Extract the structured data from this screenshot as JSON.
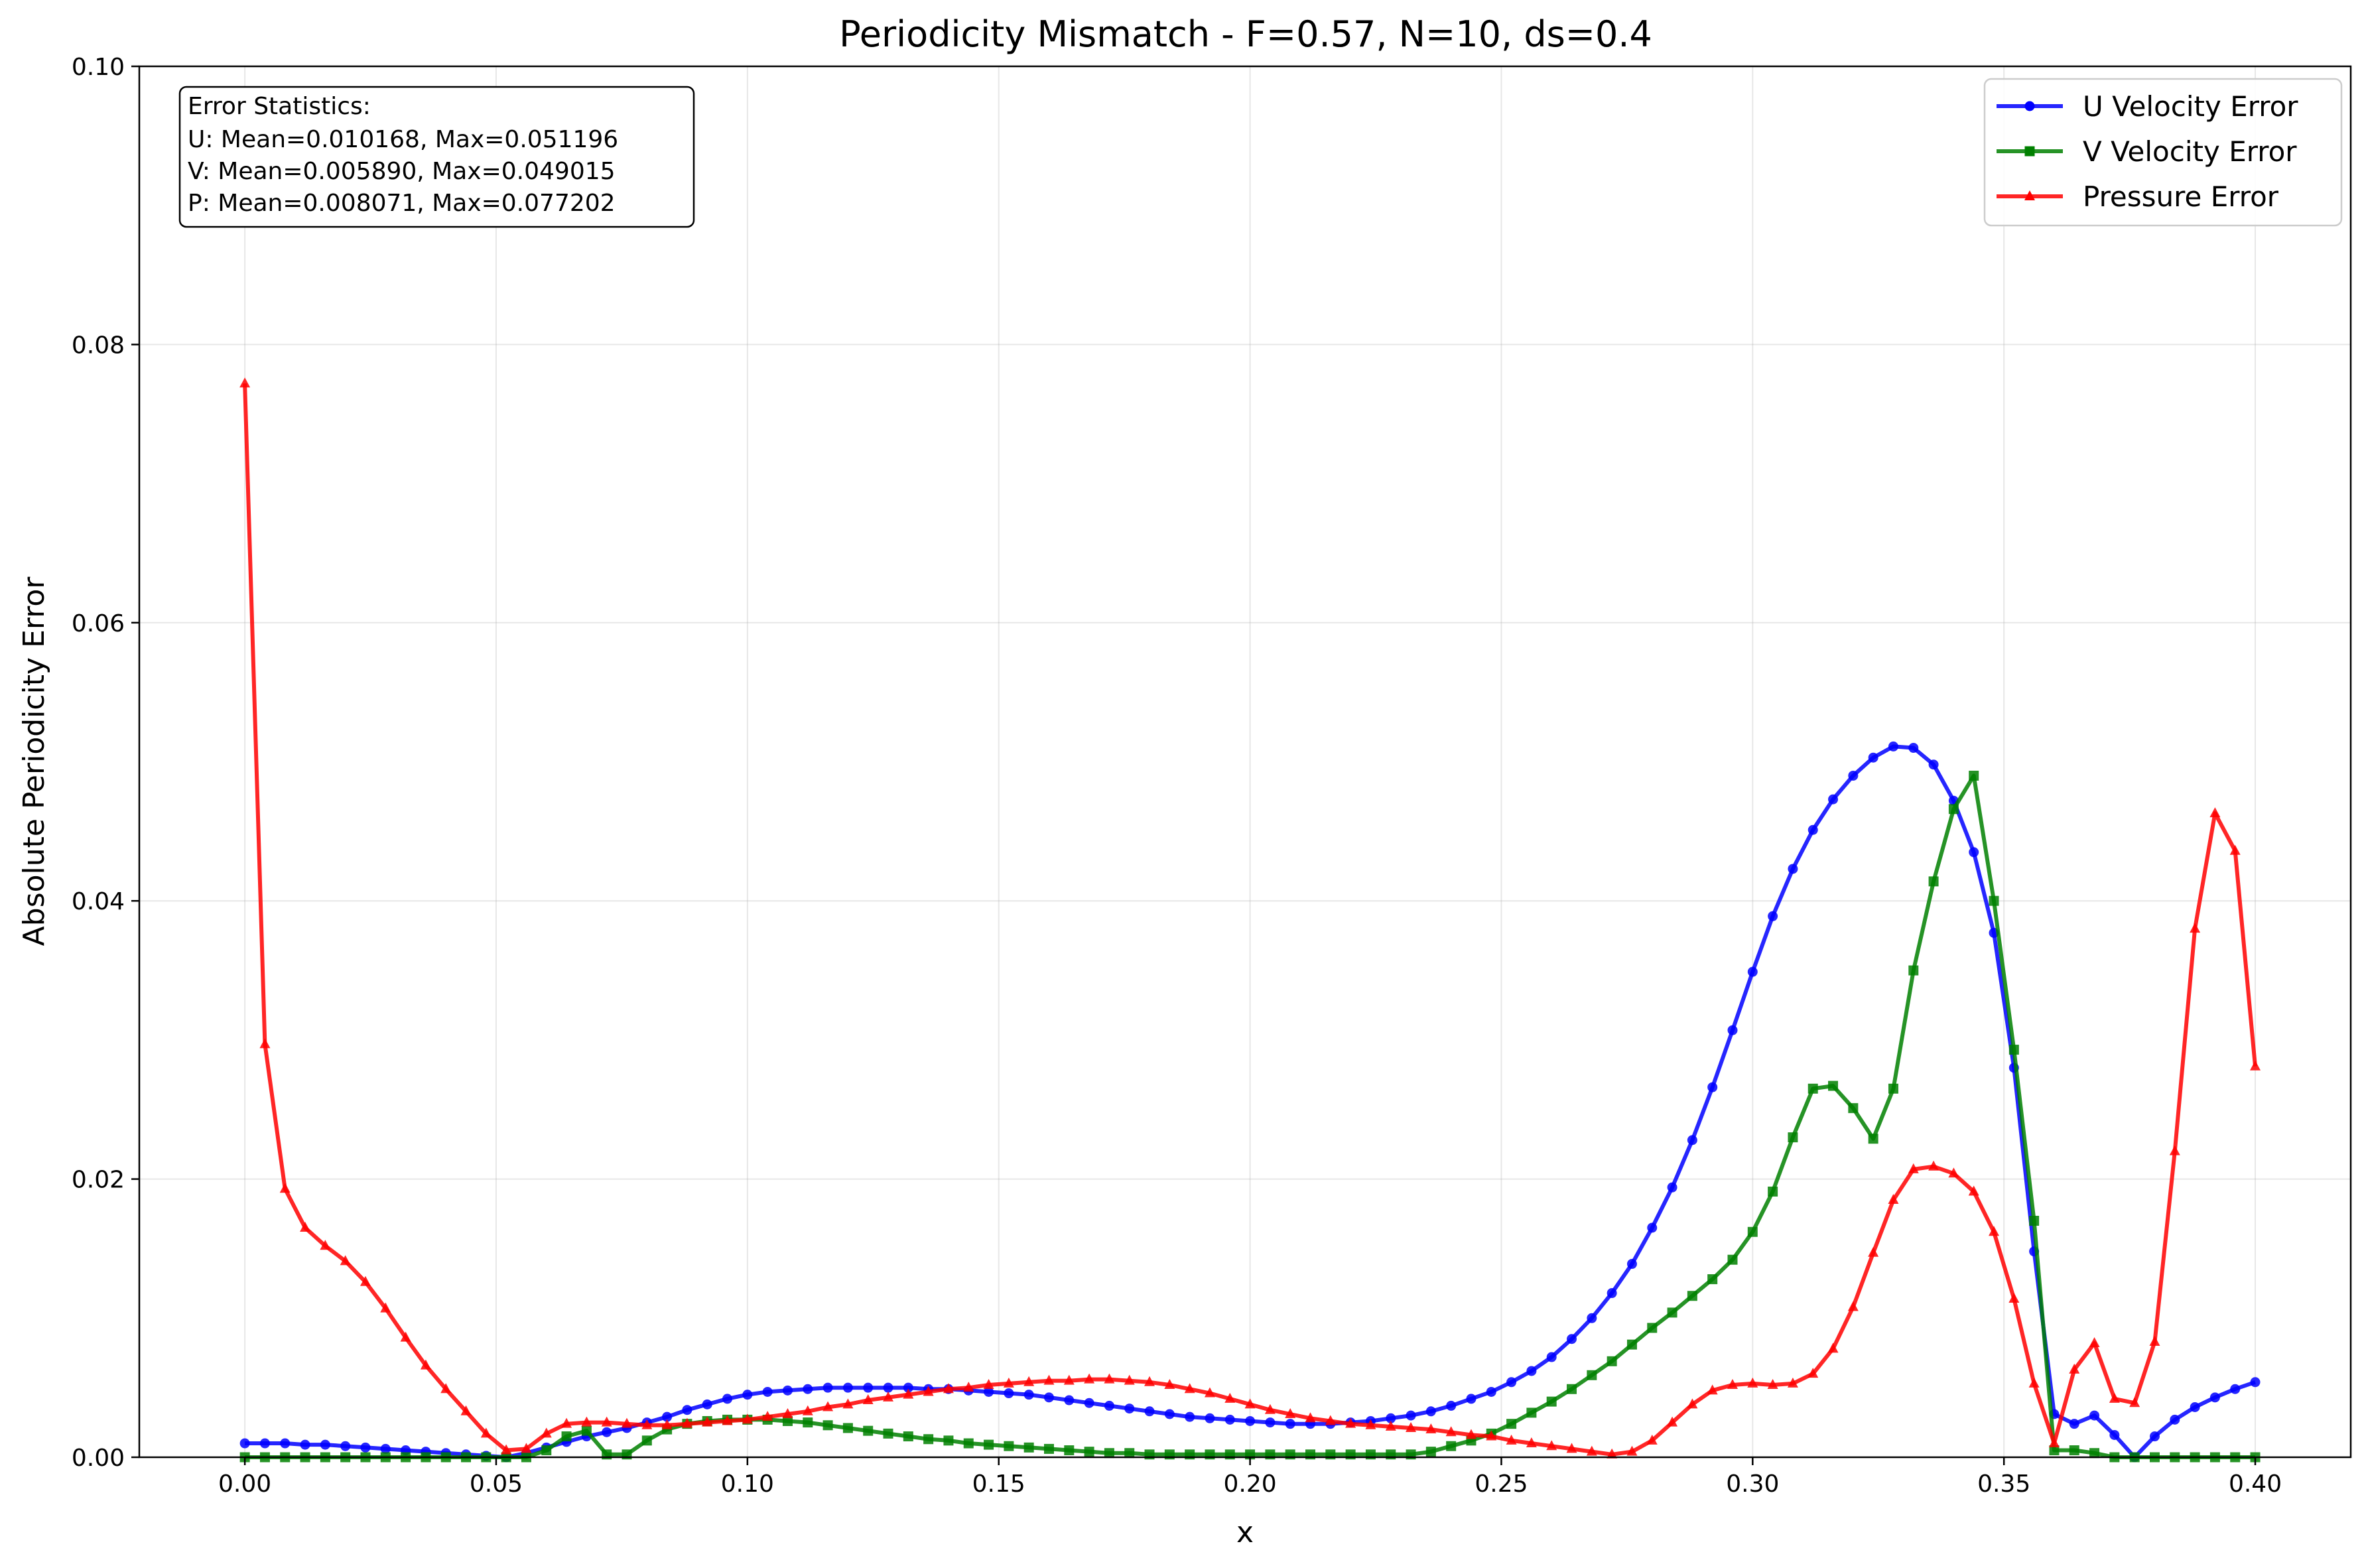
{
  "chart_data": {
    "type": "line",
    "title": "Periodicity Mismatch - F=0.57, N=10, ds=0.4",
    "xlabel": "x",
    "ylabel": "Absolute Periodicity Error",
    "xlim": [
      -0.021,
      0.419
    ],
    "ylim": [
      0,
      0.1
    ],
    "xticks": [
      0.0,
      0.05,
      0.1,
      0.15,
      0.2,
      0.25,
      0.3,
      0.35,
      0.4
    ],
    "xtick_labels": [
      "0.00",
      "0.05",
      "0.10",
      "0.15",
      "0.20",
      "0.25",
      "0.30",
      "0.35",
      "0.40"
    ],
    "yticks": [
      0.0,
      0.02,
      0.04,
      0.06,
      0.08,
      0.1
    ],
    "ytick_labels": [
      "0.00",
      "0.02",
      "0.04",
      "0.06",
      "0.08",
      "0.10"
    ],
    "grid": true,
    "legend_position": "top-right",
    "stats_box": {
      "heading": "Error Statistics:",
      "lines": [
        "U: Mean=0.010168, Max=0.051196",
        "V: Mean=0.005890, Max=0.049015",
        "P: Mean=0.008071, Max=0.077202"
      ]
    },
    "x": [
      0.0,
      0.004,
      0.008,
      0.012,
      0.016,
      0.02,
      0.024,
      0.028,
      0.032,
      0.036,
      0.04,
      0.044,
      0.048,
      0.052,
      0.056,
      0.06,
      0.064,
      0.068,
      0.072,
      0.076,
      0.08,
      0.084,
      0.088,
      0.092,
      0.096,
      0.1,
      0.104,
      0.108,
      0.112,
      0.116,
      0.12,
      0.124,
      0.128,
      0.132,
      0.136,
      0.14,
      0.144,
      0.148,
      0.152,
      0.156,
      0.16,
      0.164,
      0.168,
      0.172,
      0.176,
      0.18,
      0.184,
      0.188,
      0.192,
      0.196,
      0.2,
      0.204,
      0.208,
      0.212,
      0.216,
      0.22,
      0.224,
      0.228,
      0.232,
      0.236,
      0.24,
      0.244,
      0.248,
      0.252,
      0.256,
      0.26,
      0.264,
      0.268,
      0.272,
      0.276,
      0.28,
      0.284,
      0.288,
      0.292,
      0.296,
      0.3,
      0.304,
      0.308,
      0.312,
      0.316,
      0.32,
      0.324,
      0.328,
      0.332,
      0.336,
      0.34,
      0.344,
      0.348,
      0.352,
      0.356,
      0.36,
      0.364,
      0.368,
      0.372,
      0.376,
      0.38,
      0.384,
      0.388,
      0.392,
      0.396,
      0.4
    ],
    "series": [
      {
        "name": "U Velocity Error",
        "color": "#0000ff",
        "marker": "circle",
        "values": [
          0.001,
          0.001,
          0.001,
          0.0009,
          0.0009,
          0.0008,
          0.0007,
          0.0006,
          0.0005,
          0.0004,
          0.0003,
          0.0002,
          0.0001,
          0.0,
          0.0003,
          0.0007,
          0.0011,
          0.0015,
          0.0018,
          0.0021,
          0.0025,
          0.0029,
          0.0034,
          0.0038,
          0.0042,
          0.0045,
          0.0047,
          0.0048,
          0.0049,
          0.005,
          0.005,
          0.005,
          0.005,
          0.005,
          0.0049,
          0.0049,
          0.0048,
          0.0047,
          0.0046,
          0.0045,
          0.0043,
          0.0041,
          0.0039,
          0.0037,
          0.0035,
          0.0033,
          0.0031,
          0.0029,
          0.0028,
          0.0027,
          0.0026,
          0.0025,
          0.0024,
          0.0024,
          0.0024,
          0.0025,
          0.0026,
          0.0028,
          0.003,
          0.0033,
          0.0037,
          0.0042,
          0.0047,
          0.0054,
          0.0062,
          0.0072,
          0.0085,
          0.01,
          0.0118,
          0.0139,
          0.0165,
          0.0194,
          0.0228,
          0.0266,
          0.0307,
          0.0349,
          0.0389,
          0.0423,
          0.0451,
          0.0473,
          0.049,
          0.0503,
          0.0511,
          0.051,
          0.0498,
          0.0472,
          0.0435,
          0.0377,
          0.028,
          0.0148,
          0.0031,
          0.0024,
          0.003,
          0.0016,
          0.0,
          0.0015,
          0.0027,
          0.0036,
          0.0043,
          0.0049,
          0.0054
        ]
      },
      {
        "name": "V Velocity Error",
        "color": "#008000",
        "marker": "square",
        "values": [
          0.0,
          0.0,
          0.0,
          0.0,
          0.0,
          0.0,
          0.0,
          0.0,
          0.0,
          0.0,
          0.0,
          0.0,
          0.0,
          0.0,
          0.0,
          0.0005,
          0.0015,
          0.0019,
          0.0002,
          0.0002,
          0.0012,
          0.002,
          0.0024,
          0.0026,
          0.0027,
          0.0027,
          0.0027,
          0.0026,
          0.0025,
          0.0023,
          0.0021,
          0.0019,
          0.0017,
          0.0015,
          0.0013,
          0.0012,
          0.001,
          0.0009,
          0.0008,
          0.0007,
          0.0006,
          0.0005,
          0.0004,
          0.0003,
          0.0003,
          0.0002,
          0.0002,
          0.0002,
          0.0002,
          0.0002,
          0.0002,
          0.0002,
          0.0002,
          0.0002,
          0.0002,
          0.0002,
          0.0002,
          0.0002,
          0.0002,
          0.0004,
          0.0008,
          0.0012,
          0.0017,
          0.0024,
          0.0032,
          0.004,
          0.0049,
          0.0059,
          0.0069,
          0.0081,
          0.0093,
          0.0104,
          0.0116,
          0.0128,
          0.0142,
          0.0162,
          0.0191,
          0.023,
          0.0265,
          0.0267,
          0.0251,
          0.0229,
          0.0265,
          0.035,
          0.0414,
          0.0466,
          0.049,
          0.04,
          0.0293,
          0.017,
          0.0005,
          0.0005,
          0.0003,
          0.0,
          0.0,
          0.0,
          0.0,
          0.0,
          0.0,
          0.0,
          0.0
        ]
      },
      {
        "name": "Pressure Error",
        "color": "#ff0000",
        "marker": "triangle",
        "values": [
          0.0772,
          0.0297,
          0.0193,
          0.0165,
          0.0152,
          0.0141,
          0.0126,
          0.0107,
          0.0086,
          0.0066,
          0.0049,
          0.0033,
          0.0017,
          0.0005,
          0.0006,
          0.0017,
          0.0024,
          0.0025,
          0.0025,
          0.0024,
          0.0023,
          0.0023,
          0.0024,
          0.0025,
          0.0026,
          0.0027,
          0.0029,
          0.0031,
          0.0033,
          0.0036,
          0.0038,
          0.0041,
          0.0043,
          0.0045,
          0.0047,
          0.0049,
          0.005,
          0.0052,
          0.0053,
          0.0054,
          0.0055,
          0.0055,
          0.0056,
          0.0056,
          0.0055,
          0.0054,
          0.0052,
          0.0049,
          0.0046,
          0.0042,
          0.0038,
          0.0034,
          0.0031,
          0.0028,
          0.0026,
          0.0024,
          0.0023,
          0.0022,
          0.0021,
          0.002,
          0.0018,
          0.0016,
          0.0015,
          0.0012,
          0.001,
          0.0008,
          0.0006,
          0.0004,
          0.0002,
          0.0004,
          0.0012,
          0.0025,
          0.0038,
          0.0048,
          0.0052,
          0.0053,
          0.0052,
          0.0053,
          0.006,
          0.0078,
          0.0108,
          0.0147,
          0.0185,
          0.0207,
          0.0209,
          0.0204,
          0.0191,
          0.0162,
          0.0114,
          0.0053,
          0.001,
          0.0063,
          0.0082,
          0.0042,
          0.0039,
          0.0083,
          0.022,
          0.038,
          0.0463,
          0.0436,
          0.0281
        ]
      }
    ]
  }
}
